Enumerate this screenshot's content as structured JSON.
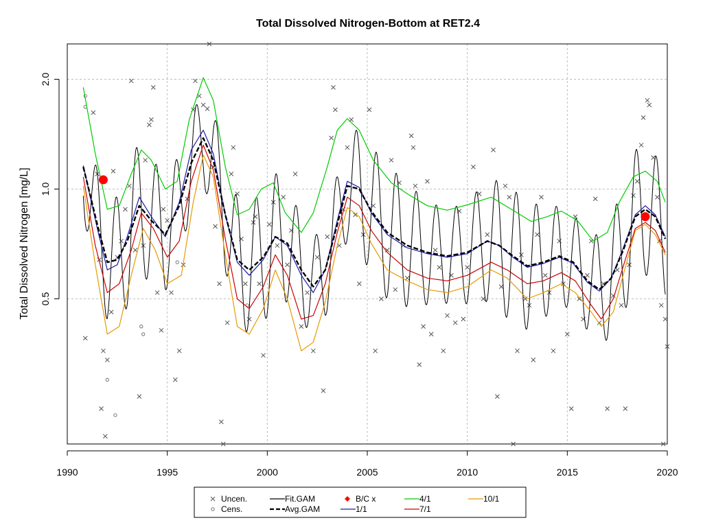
{
  "chart_data": {
    "type": "line",
    "title": "Total Dissolved Nitrogen-Bottom at RET2.4",
    "xlabel": "",
    "ylabel": "Total Dissolved Nitrogen [mg/L]",
    "y_scale": "log",
    "xlim": [
      1990,
      2020
    ],
    "ylim": [
      0.2,
      2.5
    ],
    "x_ticks": [
      "1990",
      "1995",
      "2000",
      "2005",
      "2010",
      "2015",
      "2020"
    ],
    "y_ticks": [
      "0.5",
      "1.0",
      "2.0"
    ],
    "reference_line_y": 1.0,
    "grid": true,
    "legend": {
      "position": "bottom",
      "entries": [
        {
          "label": "Uncen.",
          "symbol": "x",
          "color": "#555555"
        },
        {
          "label": "Cens.",
          "symbol": "circle",
          "color": "#555555"
        },
        {
          "label": "Fit.GAM",
          "symbol": "line",
          "color": "#000000"
        },
        {
          "label": "Avg.GAM",
          "symbol": "dashed",
          "color": "#000000"
        },
        {
          "label": "B/C x",
          "symbol": "diamond",
          "color": "#ff0000"
        },
        {
          "label": "1/1",
          "symbol": "line",
          "color": "#1a1aa8"
        },
        {
          "label": "4/1",
          "symbol": "line",
          "color": "#00cc00"
        },
        {
          "label": "7/1",
          "symbol": "line",
          "color": "#cc0000"
        },
        {
          "label": "10/1",
          "symbol": "line",
          "color": "#e69900"
        }
      ]
    },
    "baseline_change_points": [
      {
        "x": 1991.8,
        "y": 1.06
      },
      {
        "x": 2018.9,
        "y": 0.84
      }
    ],
    "series": [
      {
        "name": "Avg.GAM",
        "color": "#000000",
        "x": [
          1990.8,
          1991.5,
          1992.0,
          1992.5,
          1993.0,
          1993.6,
          1994.2,
          1994.9,
          1995.6,
          1996.2,
          1996.8,
          1997.3,
          1997.9,
          1998.5,
          1999.1,
          1999.8,
          2000.4,
          2001.0,
          2001.7,
          2002.3,
          2002.9,
          2003.5,
          2004.0,
          2004.6,
          2005.2,
          2006.0,
          2007.0,
          2008.0,
          2009.0,
          2010.0,
          2011.0,
          2011.6,
          2012.2,
          2013.0,
          2013.8,
          2014.6,
          2015.3,
          2016.0,
          2016.6,
          2017.2,
          2017.8,
          2018.4,
          2018.9,
          2019.4,
          2019.9
        ],
        "y": [
          1.15,
          0.8,
          0.63,
          0.64,
          0.72,
          0.9,
          0.82,
          0.75,
          0.9,
          1.18,
          1.38,
          1.2,
          0.85,
          0.64,
          0.6,
          0.65,
          0.74,
          0.71,
          0.6,
          0.54,
          0.6,
          0.8,
          1.02,
          1.0,
          0.87,
          0.76,
          0.7,
          0.67,
          0.655,
          0.67,
          0.72,
          0.7,
          0.66,
          0.615,
          0.63,
          0.655,
          0.63,
          0.56,
          0.53,
          0.57,
          0.68,
          0.84,
          0.88,
          0.84,
          0.73
        ]
      },
      {
        "name": "1/1",
        "color": "#1a1aa8",
        "x": [
          1990.8,
          1991.5,
          1992.0,
          1992.5,
          1993.0,
          1993.6,
          1994.2,
          1994.9,
          1995.6,
          1996.2,
          1996.8,
          1997.3,
          1997.9,
          1998.5,
          1999.1,
          1999.8,
          2000.4,
          2001.0,
          2001.7,
          2002.3,
          2002.9,
          2003.5,
          2004.0,
          2004.6,
          2005.2,
          2006.0,
          2007.0,
          2008.0,
          2009.0,
          2010.0,
          2011.0,
          2011.6,
          2012.2,
          2013.0,
          2013.8,
          2014.6,
          2015.3,
          2016.0,
          2016.6,
          2017.2,
          2017.8,
          2018.4,
          2018.9,
          2019.4,
          2019.9
        ],
        "y": [
          1.16,
          0.78,
          0.6,
          0.62,
          0.74,
          0.95,
          0.84,
          0.74,
          0.92,
          1.28,
          1.45,
          1.25,
          0.85,
          0.63,
          0.58,
          0.64,
          0.74,
          0.7,
          0.58,
          0.52,
          0.6,
          0.82,
          1.05,
          1.01,
          0.86,
          0.75,
          0.69,
          0.665,
          0.65,
          0.665,
          0.72,
          0.7,
          0.655,
          0.61,
          0.625,
          0.65,
          0.625,
          0.555,
          0.525,
          0.57,
          0.69,
          0.85,
          0.9,
          0.85,
          0.74
        ]
      },
      {
        "name": "4/1",
        "color": "#00cc00",
        "x": [
          1990.8,
          1991.4,
          1992.0,
          1992.6,
          1993.2,
          1993.7,
          1994.2,
          1994.9,
          1995.5,
          1996.1,
          1996.8,
          1997.3,
          1997.9,
          1998.5,
          1999.1,
          1999.7,
          2000.3,
          2000.9,
          2001.7,
          2002.3,
          2003.0,
          2003.5,
          2004.0,
          2004.6,
          2005.3,
          2006.2,
          2007.0,
          2008.0,
          2009.0,
          2010.0,
          2011.2,
          2012.2,
          2013.2,
          2014.0,
          2014.7,
          2015.5,
          2016.3,
          2017.0,
          2017.6,
          2018.3,
          2018.9,
          2019.5,
          2019.9
        ],
        "y": [
          1.9,
          1.25,
          0.88,
          0.9,
          1.1,
          1.28,
          1.2,
          1.0,
          1.05,
          1.55,
          2.02,
          1.75,
          1.15,
          0.85,
          0.88,
          1.0,
          1.04,
          0.86,
          0.76,
          0.86,
          1.15,
          1.45,
          1.56,
          1.45,
          1.2,
          1.04,
          0.97,
          0.9,
          0.875,
          0.905,
          0.95,
          0.88,
          0.815,
          0.84,
          0.87,
          0.82,
          0.72,
          0.76,
          0.92,
          1.08,
          1.12,
          1.05,
          0.92
        ]
      },
      {
        "name": "7/1",
        "color": "#cc0000",
        "x": [
          1990.8,
          1991.4,
          1992.0,
          1992.6,
          1993.2,
          1993.7,
          1994.3,
          1995.0,
          1995.6,
          1996.2,
          1996.8,
          1997.3,
          1997.9,
          1998.5,
          1999.1,
          1999.8,
          2000.4,
          2001.0,
          2001.7,
          2002.3,
          2002.9,
          2003.5,
          2004.0,
          2004.6,
          2005.2,
          2006.0,
          2007.0,
          2008.0,
          2009.0,
          2010.0,
          2011.2,
          2012.0,
          2013.0,
          2013.8,
          2014.7,
          2015.4,
          2016.2,
          2016.7,
          2017.3,
          2017.9,
          2018.4,
          2018.9,
          2019.4,
          2019.9
        ],
        "y": [
          1.08,
          0.7,
          0.52,
          0.55,
          0.68,
          0.86,
          0.78,
          0.65,
          0.72,
          1.05,
          1.32,
          1.13,
          0.73,
          0.5,
          0.47,
          0.54,
          0.66,
          0.58,
          0.44,
          0.45,
          0.55,
          0.76,
          0.95,
          0.9,
          0.77,
          0.67,
          0.6,
          0.57,
          0.56,
          0.58,
          0.63,
          0.6,
          0.55,
          0.56,
          0.59,
          0.56,
          0.48,
          0.44,
          0.5,
          0.64,
          0.78,
          0.81,
          0.77,
          0.67
        ]
      },
      {
        "name": "10/1",
        "color": "#e69900",
        "x": [
          1990.8,
          1991.4,
          1992.0,
          1992.6,
          1993.2,
          1993.8,
          1994.4,
          1995.0,
          1995.7,
          1996.3,
          1996.8,
          1997.3,
          1997.9,
          1998.5,
          1999.1,
          1999.8,
          2000.4,
          2001.0,
          2001.7,
          2002.3,
          2002.9,
          2003.5,
          2004.0,
          2004.6,
          2005.2,
          2006.0,
          2007.0,
          2008.0,
          2009.0,
          2010.0,
          2011.2,
          2012.0,
          2013.0,
          2013.8,
          2014.7,
          2015.4,
          2016.2,
          2016.7,
          2017.3,
          2017.9,
          2018.4,
          2018.9,
          2019.4,
          2019.9
        ],
        "y": [
          1.02,
          0.62,
          0.4,
          0.42,
          0.58,
          0.78,
          0.68,
          0.55,
          0.58,
          0.92,
          1.24,
          1.08,
          0.66,
          0.42,
          0.4,
          0.47,
          0.6,
          0.5,
          0.36,
          0.38,
          0.49,
          0.7,
          0.89,
          0.84,
          0.71,
          0.6,
          0.56,
          0.53,
          0.52,
          0.54,
          0.6,
          0.57,
          0.5,
          0.52,
          0.55,
          0.52,
          0.46,
          0.42,
          0.46,
          0.61,
          0.77,
          0.8,
          0.75,
          0.66
        ]
      }
    ],
    "fit_gam": {
      "name": "Fit.GAM",
      "color": "#000000",
      "period_years": 1.0,
      "peak_phase": 0.45,
      "amplitude_log_range": [
        0.3,
        0.42
      ]
    },
    "uncensored_points": [
      [
        1990.9,
        0.39
      ],
      [
        1991.3,
        1.62
      ],
      [
        1991.5,
        1.1
      ],
      [
        1991.6,
        0.64
      ],
      [
        1991.7,
        0.25
      ],
      [
        1991.8,
        0.36
      ],
      [
        1991.9,
        0.21
      ],
      [
        1992.0,
        0.34
      ],
      [
        1992.2,
        0.46
      ],
      [
        1992.3,
        1.12
      ],
      [
        1992.5,
        0.65
      ],
      [
        1992.7,
        0.72
      ],
      [
        1992.9,
        0.88
      ],
      [
        1993.1,
        1.02
      ],
      [
        1993.2,
        1.98
      ],
      [
        1993.4,
        0.68
      ],
      [
        1993.6,
        0.27
      ],
      [
        1993.8,
        0.7
      ],
      [
        1993.9,
        1.2
      ],
      [
        1994.1,
        1.5
      ],
      [
        1994.2,
        1.55
      ],
      [
        1994.3,
        1.9
      ],
      [
        1994.5,
        0.52
      ],
      [
        1994.7,
        0.41
      ],
      [
        1994.8,
        0.88
      ],
      [
        1995.0,
        0.82
      ],
      [
        1995.2,
        0.52
      ],
      [
        1995.4,
        0.3
      ],
      [
        1995.6,
        0.36
      ],
      [
        1995.8,
        0.62
      ],
      [
        1996.0,
        0.94
      ],
      [
        1996.3,
        1.65
      ],
      [
        1996.4,
        1.98
      ],
      [
        1996.6,
        1.8
      ],
      [
        1996.8,
        1.7
      ],
      [
        1997.0,
        1.66
      ],
      [
        1997.1,
        2.5
      ],
      [
        1997.3,
        1.15
      ],
      [
        1997.4,
        0.79
      ],
      [
        1997.6,
        0.55
      ],
      [
        1997.7,
        0.23
      ],
      [
        1997.8,
        0.2
      ],
      [
        1998.0,
        0.43
      ],
      [
        1998.2,
        1.1
      ],
      [
        1998.3,
        1.3
      ],
      [
        1998.5,
        0.97
      ],
      [
        1998.7,
        0.73
      ],
      [
        1998.9,
        0.55
      ],
      [
        1999.1,
        0.44
      ],
      [
        1999.3,
        0.81
      ],
      [
        1999.4,
        0.84
      ],
      [
        1999.6,
        0.55
      ],
      [
        1999.8,
        0.35
      ],
      [
        2000.1,
        0.8
      ],
      [
        2000.3,
        0.92
      ],
      [
        2000.5,
        0.7
      ],
      [
        2000.8,
        0.95
      ],
      [
        2001.0,
        0.62
      ],
      [
        2001.2,
        0.77
      ],
      [
        2001.4,
        1.1
      ],
      [
        2001.7,
        0.42
      ],
      [
        2002.0,
        0.52
      ],
      [
        2002.3,
        0.36
      ],
      [
        2002.5,
        0.65
      ],
      [
        2002.8,
        0.28
      ],
      [
        2003.0,
        0.74
      ],
      [
        2003.2,
        1.38
      ],
      [
        2003.3,
        1.9
      ],
      [
        2003.4,
        1.65
      ],
      [
        2003.6,
        0.7
      ],
      [
        2003.8,
        0.88
      ],
      [
        2004.0,
        1.3
      ],
      [
        2004.2,
        1.55
      ],
      [
        2004.4,
        0.85
      ],
      [
        2004.6,
        0.55
      ],
      [
        2004.8,
        0.75
      ],
      [
        2005.1,
        1.65
      ],
      [
        2005.3,
        0.9
      ],
      [
        2005.4,
        0.36
      ],
      [
        2005.7,
        0.5
      ],
      [
        2006.0,
        0.68
      ],
      [
        2006.2,
        1.2
      ],
      [
        2006.4,
        0.53
      ],
      [
        2006.6,
        1.04
      ],
      [
        2006.8,
        0.7
      ],
      [
        2007.0,
        0.57
      ],
      [
        2007.2,
        1.4
      ],
      [
        2007.3,
        1.3
      ],
      [
        2007.4,
        1.02
      ],
      [
        2007.6,
        0.33
      ],
      [
        2007.8,
        0.42
      ],
      [
        2008.0,
        1.05
      ],
      [
        2008.2,
        0.4
      ],
      [
        2008.4,
        0.68
      ],
      [
        2008.6,
        0.61
      ],
      [
        2008.8,
        0.36
      ],
      [
        2009.0,
        0.45
      ],
      [
        2009.2,
        0.58
      ],
      [
        2009.4,
        0.43
      ],
      [
        2009.6,
        0.87
      ],
      [
        2009.8,
        0.44
      ],
      [
        2010.0,
        0.61
      ],
      [
        2010.3,
        1.15
      ],
      [
        2010.6,
        0.97
      ],
      [
        2010.8,
        0.5
      ],
      [
        2011.0,
        0.75
      ],
      [
        2011.3,
        1.28
      ],
      [
        2011.5,
        0.27
      ],
      [
        2011.7,
        0.54
      ],
      [
        2011.9,
        1.02
      ],
      [
        2012.1,
        0.95
      ],
      [
        2012.3,
        0.2
      ],
      [
        2012.5,
        0.36
      ],
      [
        2012.7,
        0.66
      ],
      [
        2012.9,
        0.5
      ],
      [
        2013.1,
        0.48
      ],
      [
        2013.3,
        0.34
      ],
      [
        2013.5,
        0.75
      ],
      [
        2013.7,
        0.95
      ],
      [
        2013.9,
        0.58
      ],
      [
        2014.1,
        0.52
      ],
      [
        2014.3,
        0.36
      ],
      [
        2014.6,
        0.72
      ],
      [
        2014.8,
        0.55
      ],
      [
        2015.0,
        0.4
      ],
      [
        2015.2,
        0.25
      ],
      [
        2015.4,
        0.84
      ],
      [
        2015.6,
        0.5
      ],
      [
        2015.8,
        0.44
      ],
      [
        2016.0,
        0.58
      ],
      [
        2016.2,
        0.72
      ],
      [
        2016.4,
        0.94
      ],
      [
        2016.6,
        0.43
      ],
      [
        2016.8,
        0.55
      ],
      [
        2017.0,
        0.25
      ],
      [
        2017.3,
        0.51
      ],
      [
        2017.5,
        0.6
      ],
      [
        2017.7,
        0.48
      ],
      [
        2017.9,
        0.25
      ],
      [
        2018.1,
        0.62
      ],
      [
        2018.3,
        0.96
      ],
      [
        2018.5,
        1.05
      ],
      [
        2018.7,
        1.32
      ],
      [
        2018.8,
        1.57
      ],
      [
        2019.0,
        1.75
      ],
      [
        2019.1,
        1.7
      ],
      [
        2019.3,
        1.22
      ],
      [
        2019.5,
        0.95
      ],
      [
        2019.6,
        0.72
      ],
      [
        2019.7,
        0.48
      ],
      [
        2019.8,
        0.2
      ],
      [
        2019.9,
        0.44
      ],
      [
        2020.0,
        0.37
      ]
    ],
    "censored_points": [
      [
        1990.9,
        1.8
      ],
      [
        1990.9,
        1.68
      ],
      [
        1992.0,
        0.3
      ],
      [
        1992.4,
        0.24
      ],
      [
        1993.7,
        0.42
      ],
      [
        1993.8,
        0.4
      ],
      [
        1995.5,
        0.63
      ],
      [
        1999.0,
        0.48
      ]
    ]
  }
}
